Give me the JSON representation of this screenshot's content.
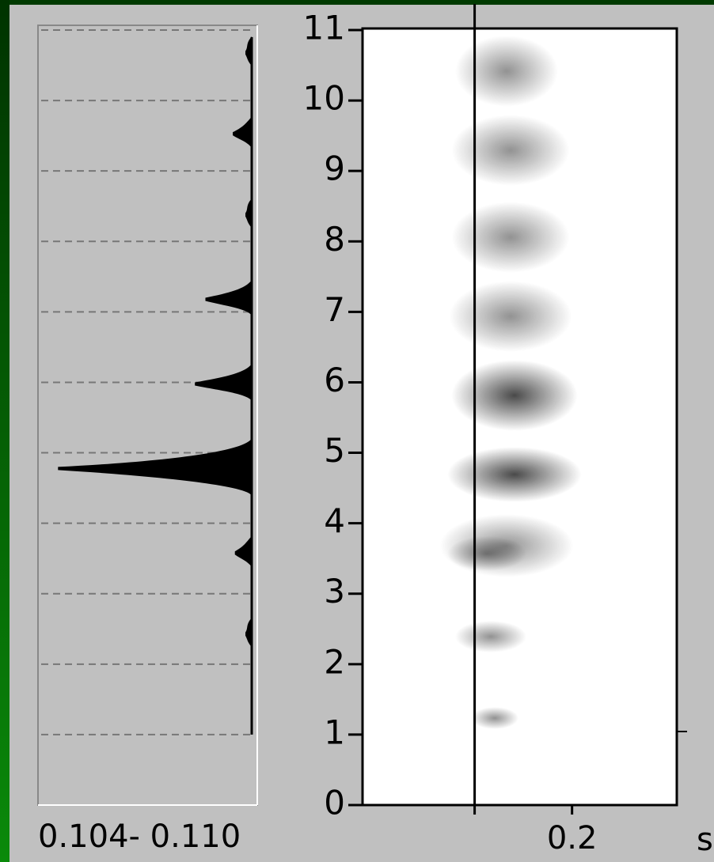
{
  "spectrum": {
    "label": "0.104- 0.110",
    "freqs": [
      10.7,
      9.55,
      8.4,
      7.2,
      6.0,
      4.8,
      3.6,
      2.45
    ],
    "levels": [
      0.03,
      0.09,
      0.03,
      0.22,
      0.27,
      0.92,
      0.08,
      0.03
    ]
  },
  "spectrogram": {
    "ylim": [
      0,
      11
    ],
    "yticks": [
      0,
      1,
      2,
      3,
      4,
      5,
      6,
      7,
      8,
      9,
      10,
      11
    ],
    "xlim": [
      0,
      0.3
    ],
    "xticks": [
      0.2
    ],
    "x_unit": "s",
    "cursor": 0.107
  }
}
